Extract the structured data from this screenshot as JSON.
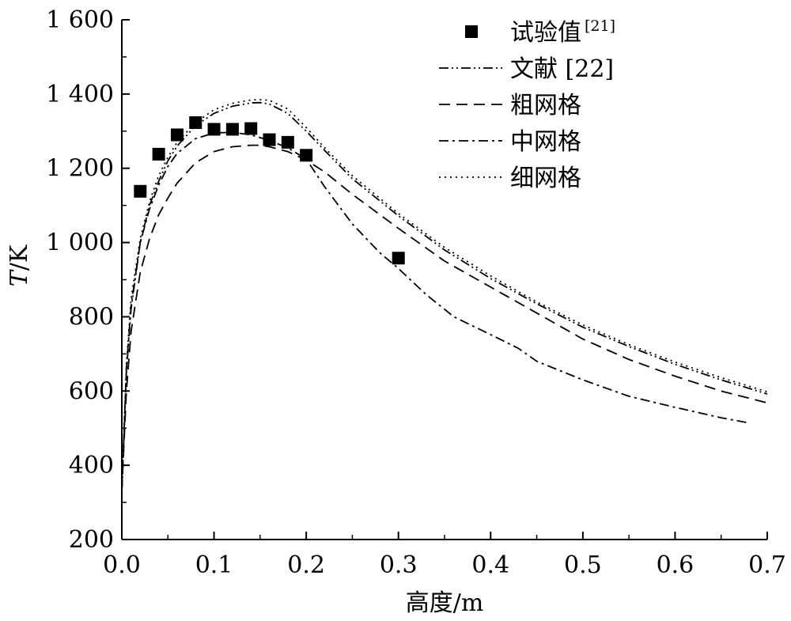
{
  "chart_data": {
    "type": "line",
    "xlabel": "高度/m",
    "ylabel_italic": "T",
    "ylabel_rest": "/K",
    "xlim": [
      0.0,
      0.7
    ],
    "ylim": [
      200,
      1600
    ],
    "x_ticks": [
      0.0,
      0.1,
      0.2,
      0.3,
      0.4,
      0.5,
      0.6,
      0.7
    ],
    "x_tick_labels": [
      "0.0",
      "0.1",
      "0.2",
      "0.3",
      "0.4",
      "0.5",
      "0.6",
      "0.7"
    ],
    "y_ticks": [
      200,
      400,
      600,
      800,
      1000,
      1200,
      1400,
      1600
    ],
    "y_tick_labels": [
      "200",
      "400",
      "600",
      "800",
      "1 000",
      "1 200",
      "1 400",
      "1 600"
    ],
    "grid": false,
    "legend_position": "top-right",
    "series": [
      {
        "name": "试验值",
        "name_sup": "[21]",
        "style": "markers",
        "x": [
          0.02,
          0.04,
          0.06,
          0.08,
          0.1,
          0.12,
          0.14,
          0.16,
          0.18,
          0.2,
          0.3
        ],
        "y": [
          1138,
          1238,
          1290,
          1323,
          1305,
          1305,
          1307,
          1277,
          1270,
          1235,
          958
        ]
      },
      {
        "name": "文献 [22]",
        "style": "dash-dot-dot",
        "x": [
          0.0,
          0.005,
          0.01,
          0.02,
          0.03,
          0.04,
          0.05,
          0.06,
          0.08,
          0.1,
          0.12,
          0.14,
          0.15,
          0.16,
          0.18,
          0.2,
          0.22,
          0.25,
          0.3,
          0.35,
          0.4,
          0.45,
          0.5,
          0.55,
          0.6,
          0.65,
          0.7
        ],
        "y": [
          330,
          650,
          820,
          1000,
          1100,
          1165,
          1220,
          1260,
          1315,
          1348,
          1367,
          1376,
          1377,
          1373,
          1348,
          1300,
          1248,
          1172,
          1072,
          980,
          903,
          835,
          772,
          720,
          672,
          630,
          592
        ]
      },
      {
        "name": "粗网格",
        "style": "dashed",
        "x": [
          0.0,
          0.005,
          0.01,
          0.02,
          0.03,
          0.04,
          0.05,
          0.06,
          0.08,
          0.1,
          0.12,
          0.14,
          0.15,
          0.16,
          0.18,
          0.2,
          0.22,
          0.25,
          0.3,
          0.35,
          0.4,
          0.45,
          0.5,
          0.55,
          0.6,
          0.65,
          0.7
        ],
        "y": [
          330,
          600,
          760,
          920,
          1010,
          1075,
          1120,
          1160,
          1215,
          1245,
          1258,
          1262,
          1262,
          1258,
          1245,
          1222,
          1190,
          1130,
          1038,
          950,
          880,
          810,
          740,
          685,
          640,
          600,
          568
        ]
      },
      {
        "name": "中网格",
        "style": "dash-dot",
        "x": [
          0.0,
          0.005,
          0.01,
          0.02,
          0.03,
          0.04,
          0.05,
          0.06,
          0.08,
          0.1,
          0.12,
          0.14,
          0.16,
          0.18,
          0.2,
          0.22,
          0.25,
          0.28,
          0.3,
          0.33,
          0.36,
          0.4,
          0.43,
          0.45,
          0.5,
          0.55,
          0.6,
          0.65,
          0.68
        ],
        "y": [
          330,
          660,
          830,
          1000,
          1090,
          1155,
          1205,
          1240,
          1280,
          1295,
          1297,
          1290,
          1275,
          1255,
          1225,
          1150,
          1050,
          972,
          930,
          860,
          800,
          752,
          715,
          680,
          630,
          586,
          556,
          528,
          514
        ]
      },
      {
        "name": "细网格",
        "style": "dotted",
        "x": [
          0.0,
          0.005,
          0.01,
          0.02,
          0.03,
          0.04,
          0.05,
          0.06,
          0.08,
          0.1,
          0.12,
          0.14,
          0.15,
          0.16,
          0.18,
          0.2,
          0.22,
          0.25,
          0.3,
          0.35,
          0.4,
          0.45,
          0.5,
          0.55,
          0.6,
          0.65,
          0.7
        ],
        "y": [
          330,
          670,
          850,
          1010,
          1110,
          1180,
          1230,
          1270,
          1323,
          1358,
          1375,
          1384,
          1385,
          1383,
          1360,
          1310,
          1255,
          1180,
          1078,
          987,
          910,
          840,
          778,
          725,
          678,
          636,
          598
        ]
      }
    ]
  }
}
